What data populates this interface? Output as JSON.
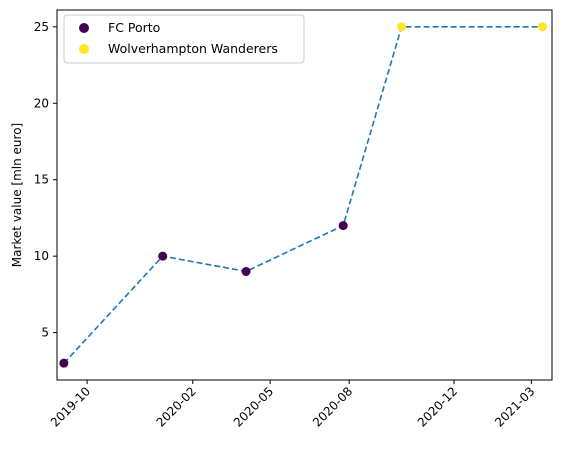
{
  "chart_data": {
    "type": "scatter",
    "ylabel": "Market value [mln euro]",
    "xlabel": "",
    "title": "",
    "ylim": [
      1.9,
      26.1
    ],
    "xlim": [
      "2019-08-27",
      "2021-03-25"
    ],
    "x_ticks": [
      "2019-10",
      "2020-02",
      "2020-05",
      "2020-08",
      "2020-12",
      "2021-03"
    ],
    "x_tick_dates": [
      "2019-10-01",
      "2020-02-01",
      "2020-05-01",
      "2020-08-01",
      "2020-12-01",
      "2021-03-01"
    ],
    "y_ticks": [
      5,
      10,
      15,
      20,
      25
    ],
    "legend_position": "top-left",
    "line": {
      "style": "dashed",
      "color": "#1f77b4",
      "x": [
        "2019-09-04",
        "2019-12-28",
        "2020-04-03",
        "2020-07-25",
        "2020-10-01",
        "2021-03-14"
      ],
      "y": [
        3,
        10,
        9,
        12,
        25,
        25
      ]
    },
    "series": [
      {
        "name": "FC Porto",
        "color": "#440154",
        "x": [
          "2019-09-04",
          "2019-12-28",
          "2020-04-03",
          "2020-07-25"
        ],
        "y": [
          3,
          10,
          9,
          12
        ]
      },
      {
        "name": "Wolverhampton Wanderers",
        "color": "#fde725",
        "x": [
          "2020-10-01",
          "2021-03-14"
        ],
        "y": [
          25,
          25
        ]
      }
    ]
  }
}
